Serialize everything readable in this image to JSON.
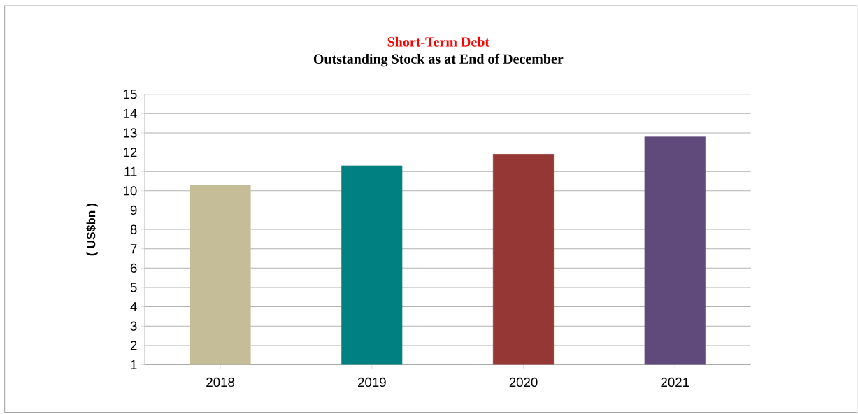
{
  "chart_data": {
    "type": "bar",
    "title": "Short-Term Debt",
    "subtitle": "Outstanding Stock as at End of  December",
    "ylabel": "( US$bn )",
    "categories": [
      "2018",
      "2019",
      "2020",
      "2021"
    ],
    "values": [
      10.3,
      11.3,
      11.9,
      12.8
    ],
    "colors": [
      "#c4bd97",
      "#008080",
      "#953735",
      "#604a7b"
    ],
    "ylim": [
      1,
      15
    ],
    "yticks": [
      1,
      2,
      3,
      4,
      5,
      6,
      7,
      8,
      9,
      10,
      11,
      12,
      13,
      14,
      15
    ],
    "grid": "y"
  }
}
